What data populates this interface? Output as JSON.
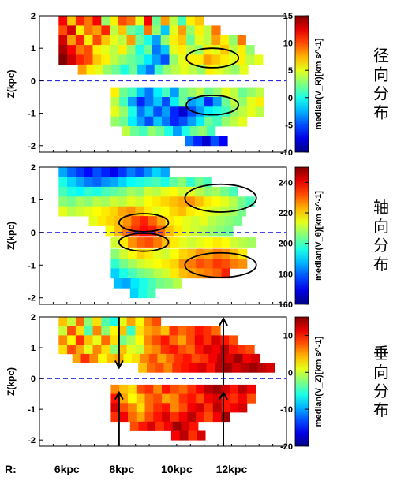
{
  "chart_data": [
    {
      "type": "heatmap",
      "title": "径向分布",
      "ylabel": "Z(kpc)",
      "colorbar_label": "median(V_R)[km s^-1]",
      "colorbar_range": [
        -10,
        15
      ],
      "colorbar_ticks": [
        "15",
        "10",
        "5",
        "0",
        "-5",
        "-10"
      ],
      "colormap": "jet",
      "xlim": [
        5,
        14
      ],
      "ylim": [
        -2.2,
        2.0
      ],
      "yticks": [
        "2",
        "1",
        "0",
        "-1",
        "-2"
      ],
      "sun_line_z": 0,
      "ellipses": [
        {
          "center_r": 11.3,
          "center_z": 0.7,
          "width_r": 1.9,
          "height_z": 0.6
        },
        {
          "center_r": 11.3,
          "center_z": -0.75,
          "width_r": 1.9,
          "height_z": 0.6
        }
      ],
      "bands": [
        {
          "z": 1.85,
          "r_start": 5.7,
          "values": [
            12,
            7,
            11,
            9,
            12,
            3,
            6,
            10,
            9,
            5,
            12,
            2,
            8,
            4,
            1,
            6,
            7
          ]
        },
        {
          "z": 1.55,
          "r_start": 5.7,
          "values": [
            10,
            13,
            6,
            9,
            8,
            11,
            4,
            7,
            2,
            1,
            9,
            3,
            -2,
            5,
            8,
            3,
            6,
            4,
            9
          ]
        },
        {
          "z": 1.25,
          "r_start": 5.7,
          "values": [
            13,
            8,
            11,
            6,
            10,
            7,
            5,
            4,
            8,
            2,
            0,
            -3,
            3,
            6,
            7,
            2,
            5,
            4,
            8,
            6,
            3,
            9
          ]
        },
        {
          "z": 0.95,
          "r_start": 5.7,
          "values": [
            14,
            12,
            9,
            10,
            6,
            5,
            4,
            6,
            3,
            0,
            2,
            -4,
            -2,
            5,
            6,
            4,
            3,
            6,
            5,
            7,
            4,
            6,
            3
          ]
        },
        {
          "z": 0.65,
          "r_start": 5.7,
          "values": [
            15,
            13,
            11,
            10,
            7,
            6,
            4,
            3,
            2,
            1,
            -1,
            -3,
            -5,
            3,
            5,
            6,
            6,
            8,
            7,
            6,
            5,
            6,
            4,
            5
          ]
        },
        {
          "z": 0.35,
          "r_start": 6.4,
          "values": [
            8,
            6,
            5,
            3,
            2,
            0,
            2,
            -2,
            -4,
            1,
            3,
            4,
            5,
            4,
            3,
            6,
            5,
            4,
            3,
            5
          ]
        },
        {
          "z": -0.35,
          "r_start": 7.6,
          "values": [
            6,
            2,
            1,
            -2,
            -4,
            -1,
            1,
            -3,
            2,
            3,
            4,
            2,
            3,
            5,
            4,
            2,
            3,
            4
          ]
        },
        {
          "z": -0.65,
          "r_start": 7.6,
          "values": [
            4,
            1,
            -3,
            -6,
            -4,
            -2,
            -5,
            -1,
            2,
            -3,
            -2,
            -6,
            -3,
            2,
            4,
            3,
            5,
            6
          ]
        },
        {
          "z": -0.95,
          "r_start": 7.6,
          "values": [
            5,
            3,
            0,
            -4,
            -2,
            -5,
            -3,
            -6,
            -8,
            -5,
            -3,
            -1,
            0,
            1,
            3,
            4,
            5,
            4
          ]
        },
        {
          "z": -1.25,
          "r_start": 7.6,
          "values": [
            3,
            2,
            -1,
            -3,
            -5,
            -2,
            -4,
            -6,
            -5,
            -3,
            -1,
            2,
            1,
            3,
            4,
            5
          ]
        },
        {
          "z": -1.55,
          "r_start": 8.0,
          "values": [
            4,
            2,
            1,
            3,
            2,
            0,
            -3,
            0,
            2,
            3,
            1
          ]
        },
        {
          "z": -1.85,
          "r_start": 10.3,
          "values": [
            -4,
            -6,
            -8,
            -5,
            -7
          ]
        }
      ]
    },
    {
      "type": "heatmap",
      "title": "轴向分布",
      "ylabel": "Z(kpc)",
      "colorbar_label": "median(V_θ)[km s^-1]",
      "colorbar_range": [
        160,
        250
      ],
      "colorbar_ticks": [
        "240",
        "220",
        "200",
        "180",
        "160"
      ],
      "colormap": "jet",
      "xlim": [
        5,
        14
      ],
      "ylim": [
        -2.2,
        2.0
      ],
      "yticks": [
        "2",
        "1",
        "0",
        "-1",
        "-2"
      ],
      "sun_line_z": 0,
      "ellipses": [
        {
          "center_r": 8.8,
          "center_z": 0.3,
          "width_r": 1.8,
          "height_z": 0.55
        },
        {
          "center_r": 8.8,
          "center_z": -0.3,
          "width_r": 1.8,
          "height_z": 0.55
        },
        {
          "center_r": 11.6,
          "center_z": 1.05,
          "width_r": 2.6,
          "height_z": 0.85
        },
        {
          "center_r": 11.6,
          "center_z": -1.0,
          "width_r": 2.6,
          "height_z": 0.75
        }
      ],
      "bands": [
        {
          "z": 1.85,
          "r_start": 5.7,
          "values": [
            186,
            180,
            176,
            172,
            178,
            174,
            170,
            176,
            182,
            178,
            184,
            190,
            186
          ]
        },
        {
          "z": 1.55,
          "r_start": 5.7,
          "values": [
            196,
            190,
            186,
            182,
            180,
            184,
            186,
            190,
            194,
            196,
            198,
            200,
            196,
            202,
            206,
            198,
            204,
            200
          ]
        },
        {
          "z": 1.25,
          "r_start": 5.7,
          "values": [
            200,
            196,
            194,
            198,
            196,
            200,
            202,
            204,
            208,
            206,
            212,
            210,
            214,
            216,
            212,
            214,
            210,
            206,
            208,
            204,
            200
          ]
        },
        {
          "z": 0.95,
          "r_start": 5.7,
          "values": [
            206,
            204,
            208,
            206,
            210,
            208,
            212,
            210,
            214,
            212,
            216,
            218,
            220,
            222,
            224,
            226,
            222,
            218,
            216,
            214,
            210,
            204,
            200
          ]
        },
        {
          "z": 0.65,
          "r_start": 5.7,
          "values": [
            214,
            210,
            212,
            214,
            216,
            218,
            220,
            224,
            226,
            222,
            218,
            214,
            216,
            220,
            222,
            218,
            216,
            214,
            212,
            210,
            208,
            204
          ]
        },
        {
          "z": 0.35,
          "r_start": 6.8,
          "values": [
            214,
            218,
            220,
            222,
            226,
            232,
            236,
            230,
            224,
            218,
            216,
            214,
            212,
            214,
            210,
            208,
            206,
            204
          ]
        },
        {
          "z": 0.05,
          "r_start": 7.4,
          "values": [
            216,
            222,
            228,
            234,
            238,
            236,
            230,
            222,
            218,
            214,
            212,
            210,
            208,
            206,
            204
          ]
        },
        {
          "z": -0.3,
          "r_start": 7.6,
          "values": [
            212,
            218,
            226,
            230,
            232,
            228,
            222,
            218,
            214,
            212,
            214,
            216,
            218,
            216,
            212,
            210,
            208
          ]
        },
        {
          "z": -0.65,
          "r_start": 7.6,
          "values": [
            206,
            212,
            216,
            220,
            218,
            214,
            212,
            216,
            220,
            222,
            226,
            224,
            228,
            226,
            222,
            218
          ]
        },
        {
          "z": -0.95,
          "r_start": 7.6,
          "values": [
            198,
            204,
            208,
            212,
            214,
            216,
            218,
            220,
            226,
            228,
            232,
            230,
            234,
            232,
            228,
            226
          ]
        },
        {
          "z": -1.25,
          "r_start": 7.6,
          "values": [
            190,
            196,
            200,
            204,
            206,
            210,
            212,
            218,
            222,
            224,
            226,
            228,
            230,
            236
          ]
        },
        {
          "z": -1.55,
          "r_start": 7.7,
          "values": [
            188,
            186,
            192,
            196,
            200,
            204,
            206,
            210
          ]
        },
        {
          "z": -1.85,
          "r_start": 8.3,
          "values": [
            190,
            196,
            200
          ]
        }
      ]
    },
    {
      "type": "heatmap",
      "title": "垂向分布",
      "ylabel": "Z(kpc)",
      "colorbar_label": "median(V_Z)[km s^-1]",
      "colorbar_range": [
        -20,
        15
      ],
      "colorbar_ticks": [
        "10",
        "0",
        "-10",
        "-20"
      ],
      "colormap": "jet",
      "xlim": [
        5,
        14
      ],
      "ylim": [
        -2.2,
        2.0
      ],
      "yticks": [
        "2",
        "1",
        "0",
        "-1",
        "-2"
      ],
      "sun_line_z": 0,
      "arrows": [
        {
          "r": 7.9,
          "from_z": 2.0,
          "to_z": 0.35
        },
        {
          "r": 7.9,
          "from_z": -2.2,
          "to_z": -0.45
        },
        {
          "r": 11.7,
          "from_z": -0.25,
          "to_z": 1.95
        },
        {
          "r": 11.7,
          "from_z": -2.2,
          "to_z": -0.45
        }
      ],
      "bands": [
        {
          "z": 1.85,
          "r_start": 5.7,
          "values": [
            4,
            0,
            7,
            -2,
            3,
            -4,
            -6,
            1,
            5,
            2,
            6,
            8
          ]
        },
        {
          "z": 1.55,
          "r_start": 5.7,
          "values": [
            0,
            8,
            3,
            -4,
            6,
            -2,
            2,
            4,
            -5,
            3,
            5,
            6,
            4,
            9,
            7,
            8,
            10,
            9,
            7
          ]
        },
        {
          "z": 1.25,
          "r_start": 5.7,
          "values": [
            6,
            2,
            9,
            4,
            1,
            7,
            3,
            -3,
            -1,
            2,
            6,
            8,
            10,
            7,
            5,
            8,
            11,
            9,
            12,
            10,
            8
          ]
        },
        {
          "z": 0.95,
          "r_start": 5.7,
          "values": [
            3,
            8,
            5,
            1,
            6,
            3,
            -2,
            4,
            1,
            0,
            5,
            6,
            9,
            10,
            8,
            7,
            10,
            12,
            11,
            13,
            10,
            9,
            8
          ]
        },
        {
          "z": 0.65,
          "r_start": 6.2,
          "values": [
            5,
            9,
            6,
            2,
            4,
            5,
            2,
            3,
            6,
            8,
            5,
            7,
            9,
            10,
            8,
            9,
            11,
            13,
            12,
            14,
            11,
            12
          ]
        },
        {
          "z": 0.35,
          "r_start": 8.6,
          "values": [
            4,
            7,
            8,
            6,
            9,
            10,
            11,
            12,
            10,
            13,
            14,
            12,
            13,
            14,
            13,
            12
          ]
        },
        {
          "z": -0.35,
          "r_start": 7.6,
          "values": [
            6,
            4,
            3,
            8,
            9,
            6,
            10,
            8,
            7,
            9,
            11,
            13,
            14,
            12,
            10,
            13,
            11
          ]
        },
        {
          "z": -0.65,
          "r_start": 7.6,
          "values": [
            10,
            5,
            2,
            4,
            7,
            8,
            5,
            6,
            9,
            10,
            8,
            11,
            12,
            10,
            9,
            11,
            8
          ]
        },
        {
          "z": -0.95,
          "r_start": 7.6,
          "values": [
            12,
            8,
            6,
            3,
            7,
            9,
            10,
            6,
            8,
            11,
            12,
            9,
            13,
            10,
            11,
            12
          ]
        },
        {
          "z": -1.25,
          "r_start": 7.6,
          "values": [
            9,
            11,
            7,
            5,
            8,
            10,
            12,
            9,
            11,
            13,
            10,
            8,
            11,
            14
          ]
        },
        {
          "z": -1.55,
          "r_start": 8.3,
          "values": [
            8,
            10,
            12,
            9,
            11,
            14,
            12,
            10
          ]
        },
        {
          "z": -1.85,
          "r_start": 9.8,
          "values": [
            11,
            13,
            9,
            12
          ]
        }
      ]
    }
  ],
  "shared_x_axis": {
    "prefix": "R:",
    "labels": [
      {
        "r": 6,
        "text": "6kpc"
      },
      {
        "r": 8,
        "text": "8kpc"
      },
      {
        "r": 10,
        "text": "10kpc"
      },
      {
        "r": 12,
        "text": "12kpc"
      }
    ]
  }
}
